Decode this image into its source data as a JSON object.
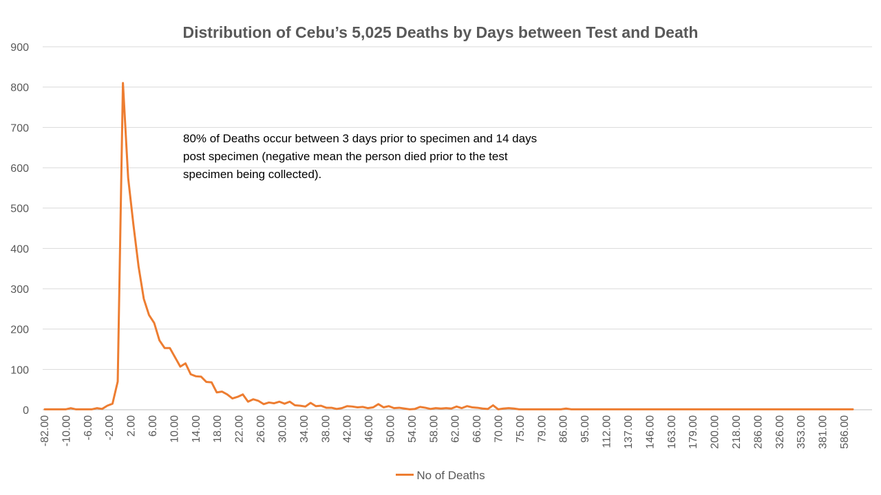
{
  "chart_data": {
    "type": "line",
    "title": "Distribution of Cebu’s 5,025 Deaths by Days between Test and Death",
    "annotation": [
      "80% of Deaths occur between 3 days prior to specimen and 14 days",
      "post specimen (negative mean the person died prior to the test",
      "specimen being collected)."
    ],
    "xlabel": "",
    "ylabel": "",
    "ylim": [
      0,
      900
    ],
    "y_ticks": [
      "900",
      "800",
      "700",
      "600",
      "500",
      "400",
      "300",
      "200",
      "100",
      "0"
    ],
    "x_tick_labels": [
      "-82.00",
      "-10.00",
      "-6.00",
      "-2.00",
      "2.00",
      "6.00",
      "10.00",
      "14.00",
      "18.00",
      "22.00",
      "26.00",
      "30.00",
      "34.00",
      "38.00",
      "42.00",
      "46.00",
      "50.00",
      "54.00",
      "58.00",
      "62.00",
      "66.00",
      "70.00",
      "75.00",
      "79.00",
      "86.00",
      "95.00",
      "112.00",
      "137.00",
      "146.00",
      "163.00",
      "179.00",
      "200.00",
      "218.00",
      "286.00",
      "326.00",
      "353.00",
      "381.00",
      "586.00"
    ],
    "grid": true,
    "legend_position": "bottom",
    "series": [
      {
        "name": "No of Deaths",
        "color": "#ED7D31",
        "values": [
          1,
          1,
          1,
          1,
          1,
          4,
          1,
          1,
          1,
          1,
          4,
          2,
          10,
          15,
          70,
          810,
          575,
          460,
          355,
          275,
          235,
          215,
          172,
          153,
          153,
          130,
          107,
          115,
          88,
          83,
          82,
          69,
          68,
          43,
          45,
          38,
          28,
          32,
          38,
          20,
          26,
          22,
          14,
          18,
          16,
          20,
          15,
          20,
          11,
          10,
          8,
          17,
          9,
          10,
          5,
          5,
          2,
          4,
          9,
          8,
          6,
          7,
          4,
          6,
          14,
          6,
          9,
          4,
          5,
          3,
          1,
          2,
          7,
          5,
          2,
          4,
          3,
          4,
          3,
          8,
          4,
          9,
          6,
          5,
          3,
          2,
          11,
          1,
          3,
          4,
          3,
          1,
          1,
          1,
          1,
          1,
          1,
          1,
          1,
          1,
          3,
          1,
          1,
          1,
          1,
          1,
          1,
          1,
          1,
          1,
          1,
          1,
          1,
          1,
          1,
          1,
          1,
          1,
          1,
          1,
          1,
          1,
          1,
          1,
          1,
          1,
          1,
          1,
          1,
          1,
          1,
          1,
          1,
          1,
          1,
          1,
          1,
          1,
          1,
          1,
          1,
          1,
          1,
          1,
          1,
          1,
          1,
          1,
          1,
          1,
          1,
          1,
          1,
          1,
          1,
          1
        ]
      }
    ]
  }
}
